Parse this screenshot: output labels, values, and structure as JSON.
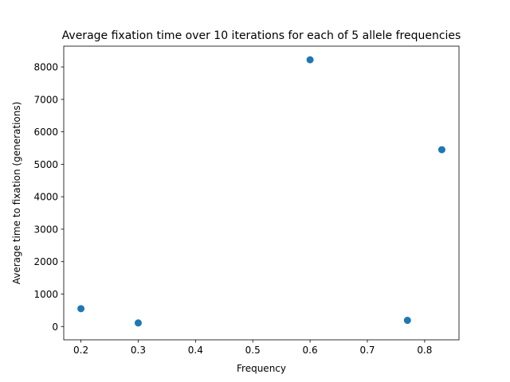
{
  "chart_data": {
    "type": "scatter",
    "title": "Average fixation time over 10 iterations for each of 5 allele frequencies",
    "xlabel": "Frequency",
    "ylabel": "Average time to fixation (generations)",
    "xlim": [
      0.17,
      0.86
    ],
    "ylim": [
      -410,
      8640
    ],
    "xticks": [
      0.2,
      0.3,
      0.4,
      0.5,
      0.6,
      0.7,
      0.8
    ],
    "xtick_labels": [
      "0.2",
      "0.3",
      "0.4",
      "0.5",
      "0.6",
      "0.7",
      "0.8"
    ],
    "yticks": [
      0,
      1000,
      2000,
      3000,
      4000,
      5000,
      6000,
      7000,
      8000
    ],
    "ytick_labels": [
      "0",
      "1000",
      "2000",
      "3000",
      "4000",
      "5000",
      "6000",
      "7000",
      "8000"
    ],
    "grid": false,
    "legend": "none",
    "color": "#1f77b4",
    "series": [
      {
        "x": [
          0.2,
          0.3,
          0.6,
          0.77,
          0.83
        ],
        "y": [
          550,
          110,
          8220,
          190,
          5450
        ]
      }
    ]
  }
}
